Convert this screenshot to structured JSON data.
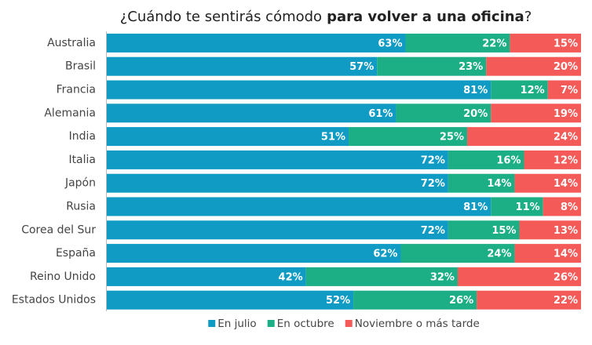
{
  "chart_data": {
    "type": "stacked-bar-horizontal",
    "title_parts": [
      "¿Cuándo te sentirás cómodo",
      "para volver a una oficina",
      "?"
    ],
    "categories": [
      "Australia",
      "Brasil",
      "Francia",
      "Alemania",
      "India",
      "Italia",
      "Japón",
      "Rusia",
      "Corea del Sur",
      "España",
      "Reino Unido",
      "Estados Unidos"
    ],
    "xlim": [
      0,
      100
    ],
    "legend": "bottom",
    "series": [
      {
        "name": "En julio",
        "color": "#0f9bc4",
        "values": [
          63,
          57,
          81,
          61,
          51,
          72,
          72,
          81,
          72,
          62,
          42,
          52
        ],
        "value_labels": [
          "63%",
          "57%",
          "81%",
          "61%",
          "51%",
          "72%",
          "72%",
          "81%",
          "72%",
          "62%",
          "42%",
          "52%"
        ]
      },
      {
        "name": "En octubre",
        "color": "#1caf85",
        "values": [
          22,
          23,
          12,
          20,
          25,
          16,
          14,
          11,
          15,
          24,
          32,
          26
        ],
        "value_labels": [
          "22%",
          "23%",
          "12%",
          "20%",
          "25%",
          "16%",
          "14%",
          "11%",
          "15%",
          "24%",
          "32%",
          "26%"
        ]
      },
      {
        "name": "Noviembre o más tarde",
        "color": "#f45b58",
        "values": [
          15,
          20,
          7,
          19,
          24,
          12,
          14,
          8,
          13,
          14,
          26,
          22
        ],
        "value_labels": [
          "15%",
          "20%",
          "7%",
          "19%",
          "24%",
          "12%",
          "14%",
          "8%",
          "13%",
          "14%",
          "26%",
          "22%"
        ]
      }
    ]
  }
}
